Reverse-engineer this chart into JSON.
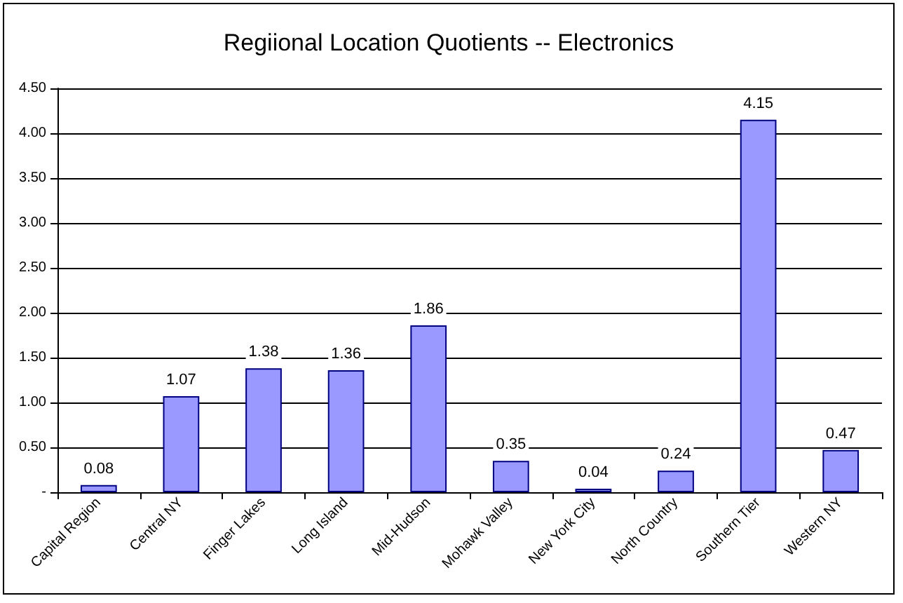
{
  "chart_data": {
    "type": "bar",
    "title": "Regiional Location Quotients -- Electronics",
    "categories": [
      "Capital Region",
      "Central NY",
      "Finger Lakes",
      "Long Island",
      "Mid-Hudson",
      "Mohawk Valley",
      "New York City",
      "North Country",
      "Southern Tier",
      "Western NY"
    ],
    "values": [
      0.08,
      1.07,
      1.38,
      1.36,
      1.86,
      0.35,
      0.04,
      0.24,
      4.15,
      0.47
    ],
    "color": "#9999ff",
    "ylim": [
      0,
      4.5
    ],
    "yticks": [
      {
        "value": 0,
        "label": "-"
      },
      {
        "value": 0.5,
        "label": "0.50"
      },
      {
        "value": 1,
        "label": "1.00"
      },
      {
        "value": 1.5,
        "label": "1.50"
      },
      {
        "value": 2,
        "label": "2.00"
      },
      {
        "value": 2.5,
        "label": "2.50"
      },
      {
        "value": 3,
        "label": "3.00"
      },
      {
        "value": 3.5,
        "label": "3.50"
      },
      {
        "value": 4,
        "label": "4.00"
      },
      {
        "value": 4.5,
        "label": "4.50"
      }
    ],
    "grid": "y",
    "data_labels": true
  }
}
